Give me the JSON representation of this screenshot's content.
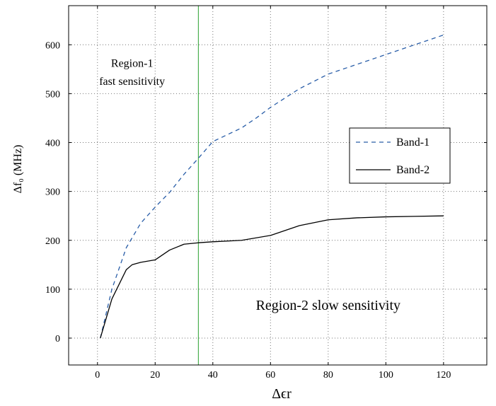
{
  "chart_data": {
    "type": "line",
    "title": "",
    "xlabel": "Δϵr",
    "ylabel": "Δf₀ (MHz)",
    "xlim": [
      -10,
      135
    ],
    "ylim": [
      -55,
      680
    ],
    "xticks": [
      0,
      20,
      40,
      60,
      80,
      100,
      120
    ],
    "yticks": [
      0,
      100,
      200,
      300,
      400,
      500,
      600
    ],
    "grid": true,
    "legend_position": "right",
    "series": [
      {
        "name": "Band-1",
        "style": "dashed",
        "color": "#2a5ea8",
        "x": [
          1,
          5,
          10,
          15,
          20,
          25,
          30,
          35,
          40,
          45,
          50,
          55,
          60,
          70,
          80,
          90,
          100,
          110,
          120
        ],
        "y": [
          0,
          100,
          185,
          235,
          268,
          298,
          335,
          368,
          402,
          416,
          430,
          450,
          472,
          510,
          540,
          560,
          580,
          600,
          620
        ]
      },
      {
        "name": "Band-2",
        "style": "solid",
        "color": "#000000",
        "x": [
          1,
          5,
          10,
          12,
          15,
          20,
          25,
          30,
          35,
          40,
          50,
          60,
          70,
          80,
          90,
          100,
          110,
          120
        ],
        "y": [
          0,
          80,
          140,
          150,
          155,
          160,
          180,
          192,
          195,
          197,
          200,
          210,
          230,
          242,
          246,
          248,
          249,
          250
        ]
      }
    ],
    "vertical_line": {
      "x": 35,
      "color": "#4caf50"
    },
    "annotations": [
      {
        "text": "Region-1",
        "x": 12,
        "y": 555
      },
      {
        "text": "fast sensitivity",
        "x": 12,
        "y": 518
      },
      {
        "text": "Region-2 slow sensitivity",
        "x": 80,
        "y": 58
      }
    ]
  }
}
